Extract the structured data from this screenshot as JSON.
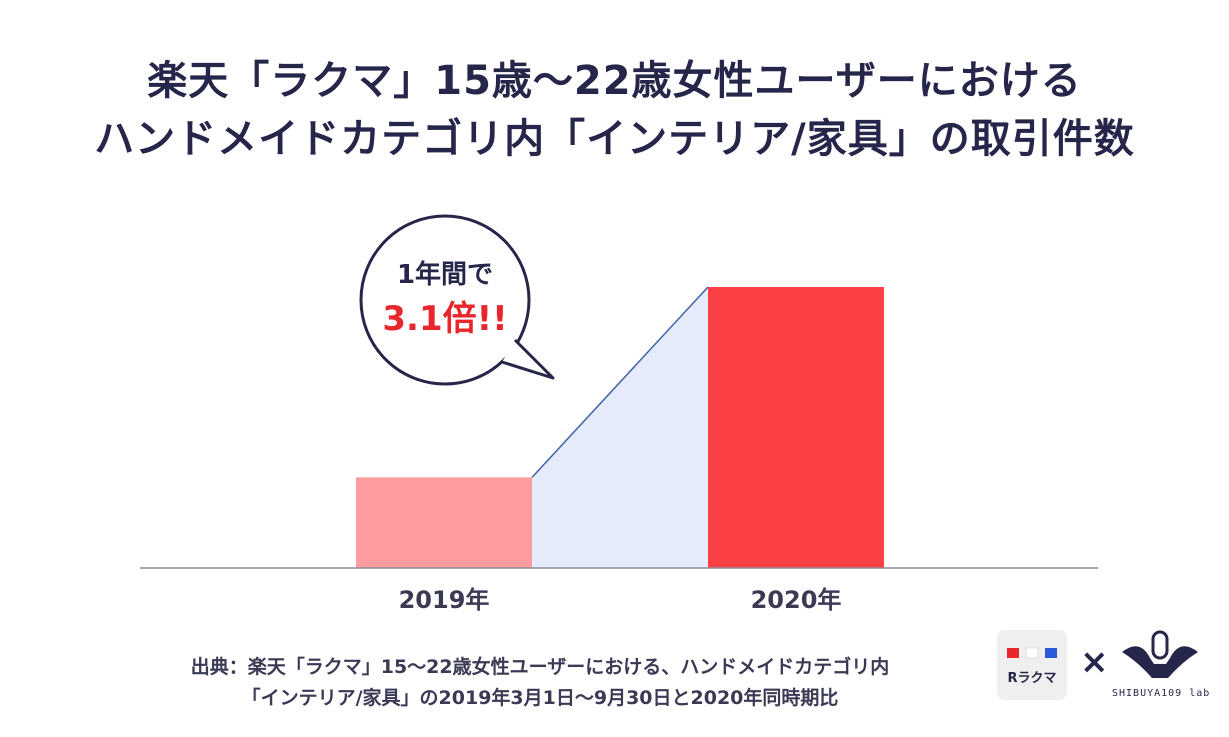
{
  "title": {
    "line1": "楽天「ラクマ」15歳〜22歳女性ユーザーにおける",
    "line2": "ハンドメイドカテゴリ内「インテリア/家具」の取引件数"
  },
  "callout": {
    "line1": "1年間で",
    "highlight": "3.1倍!!"
  },
  "source": {
    "line1": "出典：楽天「ラクマ」15〜22歳女性ユーザーにおける、ハンドメイドカテゴリ内",
    "line2": "「インテリア/家具」の2019年3月1日〜9月30日と2020年同時期比"
  },
  "logos": {
    "rakuma_text": "Rラクマ",
    "times": "×",
    "shibuya_text": "SHIBUYA109 lab"
  },
  "colors": {
    "bar_2019": "#fd9c9e",
    "bar_2020": "#fb4045",
    "growth_fill": "#e5ebfb",
    "growth_line": "#3f5fa8",
    "text": "#26264a",
    "highlight": "#e8262c"
  },
  "chart_data": {
    "type": "bar",
    "categories": [
      "2019年",
      "2020年"
    ],
    "values": [
      1,
      3.1
    ],
    "title": "楽天「ラクマ」15歳〜22歳女性ユーザーにおけるハンドメイドカテゴリ内「インテリア/家具」の取引件数",
    "xlabel": "",
    "ylabel": "",
    "ylim": [
      0,
      3.1
    ],
    "grid": false,
    "annotation": "1年間で3.1倍!!"
  }
}
